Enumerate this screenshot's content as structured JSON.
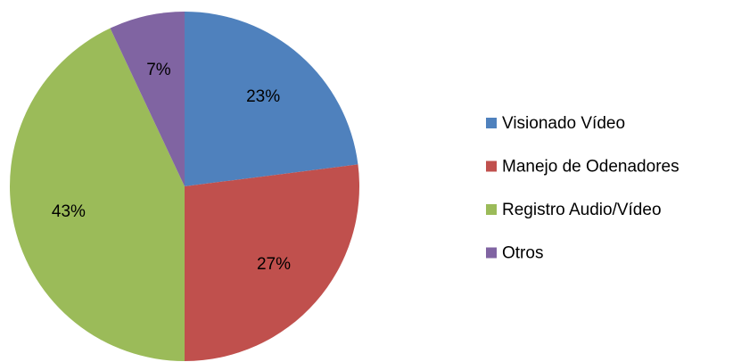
{
  "chart_data": {
    "type": "pie",
    "categories": [
      "Visionado Vídeo",
      "Manejo de Odenadores",
      "Registro Audio/Vídeo",
      "Otros"
    ],
    "values": [
      23,
      27,
      43,
      7
    ],
    "value_labels": [
      "23%",
      "27%",
      "43%",
      "7%"
    ],
    "colors": [
      "#4f81bd",
      "#c0504d",
      "#9bbb59",
      "#8064a2"
    ],
    "legend": "right"
  }
}
